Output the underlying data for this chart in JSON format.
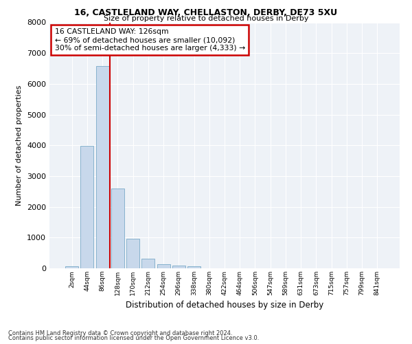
{
  "title_line1": "16, CASTLELAND WAY, CHELLASTON, DERBY, DE73 5XU",
  "title_line2": "Size of property relative to detached houses in Derby",
  "xlabel": "Distribution of detached houses by size in Derby",
  "ylabel": "Number of detached properties",
  "bar_color": "#c8d8eb",
  "bar_edge_color": "#7aaac8",
  "vline_color": "#cc0000",
  "annotation_text": "16 CASTLELAND WAY: 126sqm\n← 69% of detached houses are smaller (10,092)\n30% of semi-detached houses are larger (4,333) →",
  "annotation_box_color": "#ffffff",
  "annotation_border_color": "#cc0000",
  "categories": [
    "2sqm",
    "44sqm",
    "86sqm",
    "128sqm",
    "170sqm",
    "212sqm",
    "254sqm",
    "296sqm",
    "338sqm",
    "380sqm",
    "422sqm",
    "464sqm",
    "506sqm",
    "547sqm",
    "589sqm",
    "631sqm",
    "673sqm",
    "715sqm",
    "757sqm",
    "799sqm",
    "841sqm"
  ],
  "values": [
    70,
    3980,
    6580,
    2600,
    960,
    310,
    140,
    90,
    60,
    0,
    0,
    0,
    0,
    0,
    0,
    0,
    0,
    0,
    0,
    0,
    0
  ],
  "ylim": [
    0,
    8000
  ],
  "yticks": [
    0,
    1000,
    2000,
    3000,
    4000,
    5000,
    6000,
    7000,
    8000
  ],
  "background_color": "#eef2f7",
  "grid_color": "#ffffff",
  "footer_line1": "Contains HM Land Registry data © Crown copyright and database right 2024.",
  "footer_line2": "Contains public sector information licensed under the Open Government Licence v3.0."
}
